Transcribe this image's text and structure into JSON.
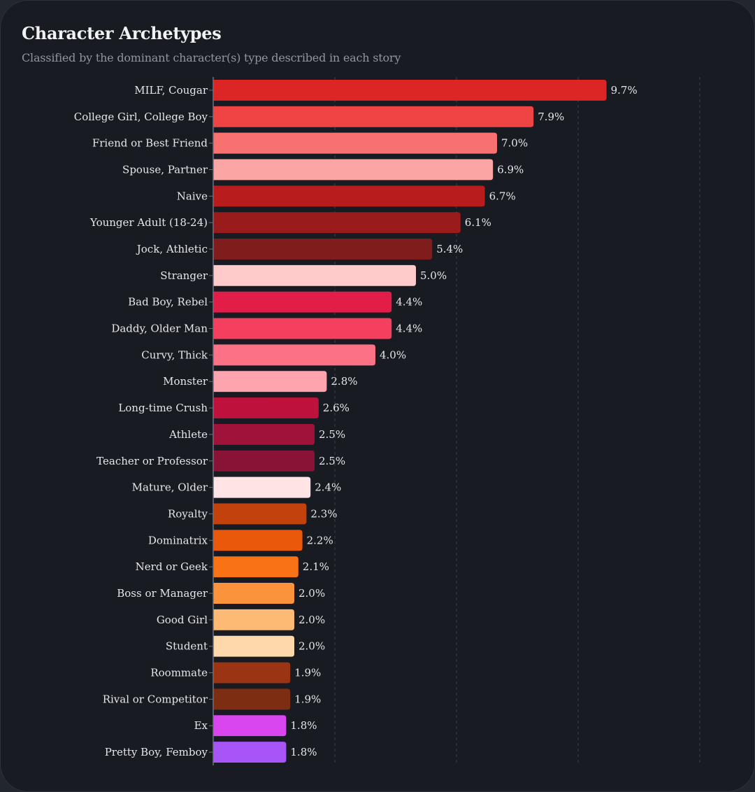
{
  "chart_data": {
    "type": "bar",
    "orientation": "horizontal",
    "title": "Character Archetypes",
    "subtitle": "Classified by the dominant character(s) type described in each story",
    "xlabel": "",
    "ylabel": "",
    "xlim": [
      0,
      12
    ],
    "grid": true,
    "grid_ticks": [
      3,
      6,
      9,
      12
    ],
    "value_suffix": "%",
    "categories": [
      "MILF, Cougar",
      "College Girl, College Boy",
      "Friend or Best Friend",
      "Spouse, Partner",
      "Naive",
      "Younger Adult (18-24)",
      "Jock, Athletic",
      "Stranger",
      "Bad Boy, Rebel",
      "Daddy, Older Man",
      "Curvy, Thick",
      "Monster",
      "Long-time Crush",
      "Athlete",
      "Teacher or Professor",
      "Mature, Older",
      "Royalty",
      "Dominatrix",
      "Nerd or Geek",
      "Boss or Manager",
      "Good Girl",
      "Student",
      "Roommate",
      "Rival or Competitor",
      "Ex",
      "Pretty Boy, Femboy"
    ],
    "values": [
      9.7,
      7.9,
      7.0,
      6.9,
      6.7,
      6.1,
      5.4,
      5.0,
      4.4,
      4.4,
      4.0,
      2.8,
      2.6,
      2.5,
      2.5,
      2.4,
      2.3,
      2.2,
      2.1,
      2.0,
      2.0,
      2.0,
      1.9,
      1.9,
      1.8,
      1.8
    ],
    "value_labels": [
      "9.7%",
      "7.9%",
      "7.0%",
      "6.9%",
      "6.7%",
      "6.1%",
      "5.4%",
      "5.0%",
      "4.4%",
      "4.4%",
      "4.0%",
      "2.8%",
      "2.6%",
      "2.5%",
      "2.5%",
      "2.4%",
      "2.3%",
      "2.2%",
      "2.1%",
      "2.0%",
      "2.0%",
      "2.0%",
      "1.9%",
      "1.9%",
      "1.8%",
      "1.8%"
    ],
    "colors": [
      "#dc2626",
      "#ef4444",
      "#f87171",
      "#fca5a5",
      "#b91c1c",
      "#991b1b",
      "#7f1d1d",
      "#fecaca",
      "#e11d48",
      "#f43f5e",
      "#fb7185",
      "#fda4af",
      "#be123c",
      "#9f1239",
      "#881337",
      "#ffe4e6",
      "#c2410c",
      "#ea580c",
      "#f97316",
      "#fb923c",
      "#fdba74",
      "#fed7aa",
      "#9a3412",
      "#7c2d12",
      "#d946ef",
      "#a855f7"
    ]
  },
  "theme": {
    "background": "#181b22",
    "text": "#e6e7ea",
    "subtitle_text": "#9096a0",
    "gridline": "#3a3f49",
    "axis": "#6b7280"
  }
}
